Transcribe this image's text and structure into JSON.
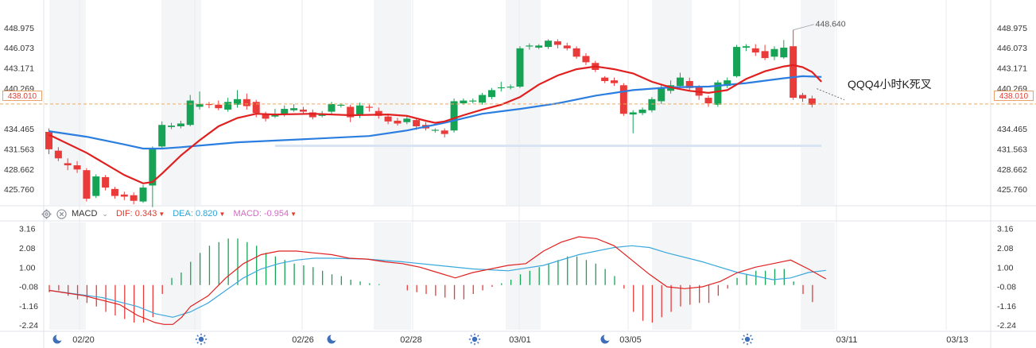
{
  "chart_data": {
    "type": "candlestick",
    "price_axis": {
      "ticks": [
        "448.975",
        "446.073",
        "443.171",
        "440.269",
        "434.465",
        "431.563",
        "428.662",
        "425.760"
      ],
      "min": 423.5,
      "max": 451.8
    },
    "current_price": "438.010",
    "max_price_label": "448.640",
    "annotation": "QQQ4小时K死叉",
    "x_labels": [
      "02/20",
      "02/26",
      "02/28",
      "03/01",
      "03/05",
      "03/11",
      "03/13"
    ],
    "candles": [
      [
        434.0,
        431.5,
        434.5,
        430.8
      ],
      [
        431.3,
        430.2,
        431.8,
        429.8
      ],
      [
        429.5,
        429.2,
        430.2,
        428.5
      ],
      [
        429.2,
        428.6,
        429.8,
        428.1
      ],
      [
        428.5,
        424.4,
        428.8,
        424.0
      ],
      [
        424.8,
        427.6,
        427.9,
        424.5
      ],
      [
        427.5,
        426.0,
        427.8,
        425.6
      ],
      [
        425.8,
        424.8,
        426.1,
        424.4
      ],
      [
        425.0,
        424.7,
        425.4,
        424.2
      ],
      [
        424.9,
        424.1,
        425.3,
        423.6
      ],
      [
        424.0,
        426.0,
        426.4,
        423.8
      ],
      [
        426.3,
        431.6,
        431.9,
        423.2
      ],
      [
        431.9,
        435.0,
        435.5,
        431.5
      ],
      [
        434.7,
        434.9,
        435.3,
        434.4
      ],
      [
        434.8,
        435.2,
        435.6,
        434.5
      ],
      [
        435.0,
        438.5,
        439.3,
        434.8
      ],
      [
        437.6,
        438.0,
        439.8,
        437.2
      ],
      [
        438.0,
        437.9,
        438.3,
        437.4
      ],
      [
        437.9,
        437.4,
        438.5,
        437.1
      ],
      [
        437.2,
        438.3,
        438.9,
        436.9
      ],
      [
        437.9,
        438.7,
        440.0,
        437.5
      ],
      [
        438.7,
        437.7,
        439.5,
        437.2
      ],
      [
        438.3,
        436.7,
        438.6,
        436.1
      ],
      [
        436.5,
        435.9,
        436.9,
        435.5
      ],
      [
        436.2,
        436.6,
        437.3,
        436.0
      ],
      [
        436.6,
        437.3,
        437.8,
        436.2
      ],
      [
        437.1,
        437.4,
        438.0,
        436.9
      ],
      [
        437.2,
        436.9,
        437.6,
        436.5
      ],
      [
        436.8,
        436.1,
        437.2,
        435.8
      ],
      [
        436.3,
        436.5,
        437.0,
        436.1
      ],
      [
        436.9,
        438.0,
        438.3,
        436.6
      ],
      [
        437.8,
        437.9,
        438.1,
        437.5
      ],
      [
        437.6,
        436.1,
        437.9,
        435.4
      ],
      [
        436.4,
        437.8,
        438.2,
        436.0
      ],
      [
        437.6,
        437.5,
        437.9,
        436.9
      ],
      [
        437.0,
        436.3,
        437.5,
        435.9
      ],
      [
        436.2,
        435.5,
        436.6,
        435.1
      ],
      [
        435.6,
        435.2,
        436.0,
        434.9
      ],
      [
        435.4,
        435.9,
        436.3,
        435.1
      ],
      [
        435.7,
        434.8,
        436.0,
        434.3
      ],
      [
        435.0,
        434.5,
        435.4,
        434.2
      ],
      [
        434.2,
        434.3,
        434.5,
        433.9
      ],
      [
        434.2,
        433.7,
        434.5,
        433.2
      ],
      [
        434.2,
        438.4,
        438.8,
        433.9
      ],
      [
        438.1,
        438.5,
        438.8,
        437.9
      ],
      [
        438.4,
        438.5,
        438.8,
        438.1
      ],
      [
        438.2,
        439.3,
        439.6,
        437.9
      ],
      [
        439.0,
        440.0,
        440.3,
        438.7
      ],
      [
        440.4,
        440.4,
        441.2,
        439.8
      ],
      [
        440.4,
        440.5,
        440.8,
        440.1
      ],
      [
        440.5,
        446.0,
        446.3,
        440.3
      ],
      [
        446.3,
        446.4,
        446.7,
        445.8
      ],
      [
        446.1,
        446.4,
        446.6,
        445.9
      ],
      [
        446.2,
        447.1,
        447.3,
        445.9
      ],
      [
        447.0,
        446.5,
        447.3,
        446.0
      ],
      [
        446.4,
        446.0,
        446.8,
        445.7
      ],
      [
        446.0,
        444.8,
        446.3,
        444.5
      ],
      [
        444.9,
        444.0,
        445.3,
        443.6
      ],
      [
        443.9,
        442.9,
        444.2,
        442.6
      ],
      [
        441.8,
        441.3,
        442.0,
        441.0
      ],
      [
        441.4,
        441.0,
        441.8,
        440.6
      ],
      [
        440.7,
        436.6,
        441.0,
        436.3
      ],
      [
        436.5,
        436.8,
        437.1,
        433.8
      ],
      [
        436.7,
        437.2,
        437.5,
        436.4
      ],
      [
        437.1,
        438.7,
        439.0,
        436.8
      ],
      [
        438.4,
        440.4,
        440.8,
        438.0
      ],
      [
        439.9,
        440.7,
        441.4,
        439.5
      ],
      [
        440.6,
        441.8,
        442.5,
        440.3
      ],
      [
        441.3,
        440.3,
        441.8,
        439.9
      ],
      [
        440.4,
        439.2,
        440.7,
        438.6
      ],
      [
        438.9,
        438.1,
        439.2,
        437.6
      ],
      [
        437.9,
        441.1,
        441.4,
        437.6
      ],
      [
        440.6,
        441.4,
        441.8,
        440.3
      ],
      [
        442.0,
        446.2,
        446.5,
        441.8
      ],
      [
        446.1,
        446.3,
        446.6,
        445.6
      ],
      [
        446.0,
        445.4,
        446.6,
        444.9
      ],
      [
        445.6,
        444.6,
        446.5,
        444.3
      ],
      [
        444.8,
        445.9,
        446.3,
        444.3
      ],
      [
        444.7,
        446.1,
        447.2,
        444.5
      ],
      [
        446.3,
        438.9,
        448.64,
        438.6
      ],
      [
        439.3,
        438.8,
        439.6,
        438.3
      ],
      [
        438.8,
        437.9,
        439.2,
        437.5
      ]
    ],
    "ma_red": [
      [
        0,
        433.6
      ],
      [
        4,
        431.0
      ],
      [
        8,
        427.8
      ],
      [
        10,
        426.6
      ],
      [
        11,
        426.8
      ],
      [
        12,
        428.0
      ],
      [
        14,
        430.6
      ],
      [
        16,
        432.8
      ],
      [
        18,
        434.8
      ],
      [
        20,
        436.0
      ],
      [
        22,
        436.6
      ],
      [
        24,
        436.5
      ],
      [
        28,
        436.6
      ],
      [
        32,
        436.4
      ],
      [
        36,
        436.5
      ],
      [
        38,
        436.3
      ],
      [
        40,
        435.6
      ],
      [
        41,
        435.3
      ],
      [
        42,
        435.5
      ],
      [
        44,
        436.4
      ],
      [
        46,
        437.2
      ],
      [
        48,
        437.9
      ],
      [
        50,
        439.0
      ],
      [
        52,
        440.8
      ],
      [
        54,
        442.1
      ],
      [
        56,
        443.0
      ],
      [
        58,
        443.4
      ],
      [
        60,
        443.0
      ],
      [
        62,
        442.4
      ],
      [
        64,
        441.2
      ],
      [
        66,
        440.4
      ],
      [
        68,
        439.9
      ],
      [
        70,
        439.6
      ],
      [
        72,
        440.0
      ],
      [
        74,
        441.6
      ],
      [
        76,
        442.7
      ],
      [
        78,
        443.4
      ],
      [
        79,
        443.6
      ],
      [
        80,
        443.3
      ],
      [
        81,
        442.6
      ],
      [
        82,
        441.2
      ]
    ],
    "ma_blue": [
      [
        0,
        434.1
      ],
      [
        4,
        433.3
      ],
      [
        8,
        432.2
      ],
      [
        10,
        431.6
      ],
      [
        12,
        431.6
      ],
      [
        14,
        431.8
      ],
      [
        20,
        432.5
      ],
      [
        28,
        433.0
      ],
      [
        34,
        433.4
      ],
      [
        38,
        434.2
      ],
      [
        42,
        435.3
      ],
      [
        46,
        436.6
      ],
      [
        50,
        437.3
      ],
      [
        54,
        438.1
      ],
      [
        58,
        439.2
      ],
      [
        62,
        440.0
      ],
      [
        66,
        440.4
      ],
      [
        70,
        440.5
      ],
      [
        74,
        441.0
      ],
      [
        78,
        441.7
      ],
      [
        80,
        442.0
      ],
      [
        82,
        441.9
      ]
    ],
    "macd_axis": {
      "ticks": [
        "3.16",
        "2.08",
        "1.00",
        "-0.08",
        "-1.16",
        "-2.24"
      ],
      "min": -2.5,
      "max": 3.5
    },
    "macd_legend": {
      "name": "MACD",
      "dif_label": "DIF:",
      "dif_value": "0.343",
      "dea_label": "DEA:",
      "dea_value": "0.820",
      "macd_label": "MACD:",
      "macd_value": "-0.954"
    },
    "macd_hist": [
      -0.4,
      -0.3,
      -0.6,
      -0.8,
      -1.0,
      -1.2,
      -1.5,
      -1.7,
      -1.9,
      -2.1,
      -2.1,
      -1.8,
      -0.5,
      0.4,
      0.7,
      1.3,
      1.8,
      2.2,
      2.4,
      2.6,
      2.6,
      2.4,
      2.2,
      1.8,
      1.6,
      1.4,
      1.2,
      1.1,
      1.0,
      0.8,
      0.6,
      0.5,
      0.3,
      0.2,
      0.1,
      0.05,
      0,
      0,
      -0.3,
      -0.4,
      -0.5,
      -0.6,
      -0.7,
      -0.8,
      -0.8,
      -0.5,
      -0.3,
      -0.1,
      0.1,
      0.3,
      0.6,
      0.8,
      1.0,
      1.2,
      1.4,
      1.6,
      1.6,
      1.4,
      1.2,
      0.9,
      0.5,
      -0.2,
      -1.5,
      -2.0,
      -2.1,
      -1.8,
      -1.5,
      -1.2,
      -1.1,
      -1.0,
      -1.0,
      -0.6,
      -0.2,
      0.4,
      0.6,
      0.8,
      0.8,
      0.9,
      0.9,
      0.2,
      -0.5,
      -0.954
    ],
    "macd_dif": [
      [
        0,
        -0.3
      ],
      [
        4,
        -0.6
      ],
      [
        8,
        -1.1
      ],
      [
        10,
        -1.7
      ],
      [
        12,
        -2.1
      ],
      [
        13,
        -2.2
      ],
      [
        14,
        -2.2
      ],
      [
        15,
        -1.8
      ],
      [
        16,
        -1.2
      ],
      [
        18,
        -0.6
      ],
      [
        20,
        0.4
      ],
      [
        22,
        1.2
      ],
      [
        24,
        1.7
      ],
      [
        26,
        1.9
      ],
      [
        28,
        1.9
      ],
      [
        30,
        1.8
      ],
      [
        32,
        1.7
      ],
      [
        34,
        1.5
      ],
      [
        36,
        1.45
      ],
      [
        38,
        1.3
      ],
      [
        40,
        1.2
      ],
      [
        42,
        1.0
      ],
      [
        44,
        0.7
      ],
      [
        46,
        0.4
      ],
      [
        48,
        0.7
      ],
      [
        50,
        0.9
      ],
      [
        52,
        1.1
      ],
      [
        54,
        1.2
      ],
      [
        56,
        1.9
      ],
      [
        58,
        2.4
      ],
      [
        60,
        2.7
      ],
      [
        62,
        2.6
      ],
      [
        64,
        2.2
      ],
      [
        66,
        1.4
      ],
      [
        68,
        0.6
      ],
      [
        70,
        -0.1
      ],
      [
        72,
        -0.2
      ],
      [
        74,
        -0.1
      ],
      [
        76,
        0.2
      ],
      [
        78,
        0.7
      ],
      [
        80,
        1.0
      ],
      [
        82,
        1.2
      ],
      [
        84,
        1.4
      ],
      [
        86,
        0.9
      ],
      [
        88,
        0.343
      ]
    ],
    "macd_dea": [
      [
        0,
        -0.3
      ],
      [
        6,
        -0.7
      ],
      [
        10,
        -1.2
      ],
      [
        12,
        -1.6
      ],
      [
        14,
        -1.8
      ],
      [
        16,
        -1.5
      ],
      [
        18,
        -1.0
      ],
      [
        20,
        -0.3
      ],
      [
        22,
        0.4
      ],
      [
        24,
        0.9
      ],
      [
        26,
        1.2
      ],
      [
        28,
        1.4
      ],
      [
        30,
        1.5
      ],
      [
        32,
        1.5
      ],
      [
        36,
        1.45
      ],
      [
        40,
        1.3
      ],
      [
        44,
        1.1
      ],
      [
        48,
        0.9
      ],
      [
        52,
        0.8
      ],
      [
        56,
        1.1
      ],
      [
        60,
        1.7
      ],
      [
        64,
        2.1
      ],
      [
        66,
        2.2
      ],
      [
        68,
        2.1
      ],
      [
        70,
        1.8
      ],
      [
        74,
        1.3
      ],
      [
        78,
        0.7
      ],
      [
        82,
        0.3
      ],
      [
        84,
        0.4
      ],
      [
        86,
        0.7
      ],
      [
        88,
        0.82
      ]
    ]
  }
}
